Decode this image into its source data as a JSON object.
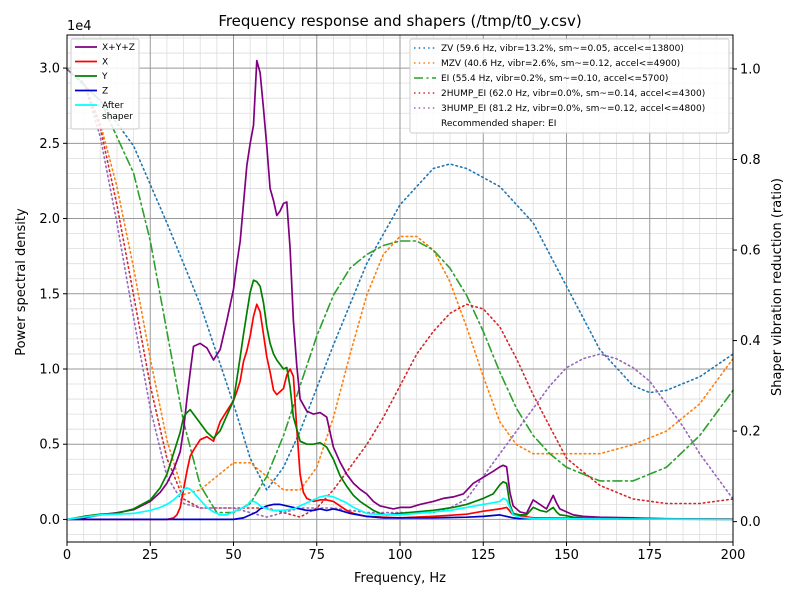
{
  "chart_data": {
    "type": "line",
    "title": "Frequency response and shapers (/tmp/t0_y.csv)",
    "xlabel": "Frequency, Hz",
    "ylabel": "Power spectral density",
    "y2label": "Shaper vibration reduction (ratio)",
    "yscale_label": "1e4",
    "xlim": [
      0,
      200
    ],
    "ylim": [
      -1500,
      32200
    ],
    "y2lim": [
      -0.045,
      1.075
    ],
    "x_ticks": [
      0,
      25,
      50,
      75,
      100,
      125,
      150,
      175,
      200
    ],
    "y_ticks": [
      0,
      5000,
      10000,
      15000,
      20000,
      25000,
      30000
    ],
    "y_tick_labels": [
      "0.0",
      "0.5",
      "1.0",
      "1.5",
      "2.0",
      "2.5",
      "3.0"
    ],
    "y2_ticks": [
      0.0,
      0.2,
      0.4,
      0.6,
      0.8,
      1.0
    ],
    "y2_tick_labels": [
      "0.0",
      "0.2",
      "0.4",
      "0.6",
      "0.8",
      "1.0"
    ],
    "grid": true,
    "legend_left_placement": "top-left",
    "legend_right_placement": "top-right",
    "recommended_text": "Recommended shaper: EI",
    "psd_series": [
      {
        "name": "X+Y+Z",
        "color": "#800080",
        "x": [
          0,
          5,
          10,
          15,
          20,
          25,
          28,
          30,
          32,
          34,
          35,
          36,
          37,
          38,
          40,
          42,
          44,
          46,
          48,
          50,
          51,
          52,
          53,
          54,
          55,
          56,
          57,
          58,
          59,
          60,
          61,
          62,
          63,
          64,
          65,
          66,
          67,
          68,
          69,
          70,
          72,
          74,
          76,
          78,
          80,
          82,
          84,
          86,
          88,
          90,
          92,
          94,
          96,
          98,
          100,
          103,
          106,
          110,
          113,
          116,
          119,
          122,
          125,
          128,
          130,
          131,
          132,
          133,
          134,
          136,
          138,
          140,
          142,
          144,
          146,
          147,
          148,
          150,
          152,
          155,
          160,
          170,
          180,
          190,
          200
        ],
        "y": [
          0,
          100,
          300,
          450,
          650,
          1200,
          1800,
          2400,
          3300,
          4500,
          6000,
          8000,
          9800,
          11500,
          11700,
          11400,
          10600,
          11300,
          13200,
          15300,
          17000,
          18500,
          21000,
          23500,
          25000,
          26200,
          30500,
          29700,
          27300,
          24800,
          22000,
          21200,
          20200,
          20500,
          21000,
          21100,
          18000,
          13200,
          10200,
          8000,
          7200,
          7000,
          7100,
          6800,
          4800,
          3800,
          3000,
          2400,
          2000,
          1700,
          1200,
          900,
          800,
          700,
          800,
          800,
          1000,
          1200,
          1400,
          1500,
          1700,
          2400,
          2800,
          3200,
          3500,
          3600,
          3500,
          1800,
          900,
          500,
          400,
          1300,
          1000,
          700,
          1600,
          1100,
          700,
          500,
          300,
          200,
          150,
          100,
          50,
          30,
          20
        ]
      },
      {
        "name": "X",
        "color": "#ff0000",
        "x": [
          0,
          10,
          20,
          30,
          32,
          33,
          34,
          35,
          36,
          37,
          38,
          40,
          42,
          44,
          46,
          48,
          50,
          51,
          52,
          53,
          54,
          55,
          56,
          57,
          58,
          59,
          60,
          61,
          62,
          63,
          64,
          65,
          66,
          67,
          68,
          69,
          70,
          71,
          72,
          74,
          76,
          78,
          80,
          82,
          84,
          86,
          88,
          90,
          95,
          100,
          110,
          120,
          125,
          130,
          132,
          134,
          140,
          150,
          160,
          180,
          200
        ],
        "y": [
          0,
          0,
          0,
          0,
          100,
          300,
          800,
          2000,
          3200,
          4200,
          4600,
          5300,
          5500,
          5200,
          6500,
          7200,
          7900,
          8500,
          9200,
          10500,
          11200,
          12200,
          13500,
          14300,
          13800,
          12300,
          10800,
          9800,
          8600,
          8300,
          8500,
          8700,
          9600,
          10000,
          9500,
          6000,
          3000,
          1800,
          1400,
          1200,
          1300,
          1300,
          1200,
          900,
          600,
          400,
          300,
          200,
          150,
          100,
          200,
          350,
          550,
          700,
          800,
          300,
          100,
          80,
          60,
          40,
          20
        ]
      },
      {
        "name": "Y",
        "color": "#008000",
        "x": [
          0,
          5,
          10,
          15,
          20,
          25,
          28,
          30,
          32,
          34,
          35,
          36,
          37,
          38,
          40,
          42,
          44,
          46,
          48,
          50,
          51,
          52,
          53,
          54,
          55,
          56,
          57,
          58,
          59,
          60,
          61,
          62,
          63,
          64,
          65,
          66,
          67,
          68,
          69,
          70,
          71,
          72,
          74,
          76,
          78,
          80,
          82,
          84,
          86,
          88,
          90,
          92,
          94,
          96,
          100,
          110,
          116,
          120,
          125,
          128,
          130,
          131,
          132,
          133,
          134,
          136,
          138,
          140,
          142,
          144,
          146,
          147,
          148,
          150,
          152,
          155,
          160,
          170,
          180,
          200
        ],
        "y": [
          0,
          200,
          350,
          400,
          700,
          1300,
          2100,
          3000,
          4400,
          5800,
          6800,
          7100,
          7300,
          7000,
          6400,
          5800,
          5400,
          5900,
          6900,
          7900,
          9300,
          10800,
          12300,
          13700,
          15100,
          15900,
          15800,
          15500,
          14400,
          12800,
          11700,
          11000,
          10600,
          10300,
          10000,
          10100,
          8800,
          6800,
          6000,
          5200,
          5100,
          5000,
          5000,
          5100,
          4800,
          4000,
          2900,
          2200,
          1600,
          1200,
          900,
          600,
          400,
          300,
          400,
          600,
          800,
          1000,
          1400,
          1700,
          2300,
          2500,
          2400,
          1000,
          400,
          300,
          300,
          800,
          600,
          500,
          800,
          500,
          300,
          250,
          150,
          100,
          50,
          30,
          20,
          10
        ]
      },
      {
        "name": "Z",
        "color": "#0000cd",
        "x": [
          0,
          20,
          40,
          50,
          53,
          55,
          57,
          58,
          60,
          62,
          64,
          66,
          68,
          70,
          72,
          74,
          76,
          78,
          80,
          82,
          85,
          90,
          95,
          100,
          110,
          120,
          125,
          130,
          132,
          134,
          136,
          140,
          145,
          150,
          160,
          180,
          200
        ],
        "y": [
          0,
          0,
          0,
          0,
          100,
          300,
          500,
          700,
          900,
          1000,
          1000,
          900,
          800,
          700,
          600,
          600,
          700,
          600,
          700,
          600,
          400,
          200,
          100,
          100,
          100,
          150,
          200,
          300,
          200,
          100,
          50,
          80,
          60,
          50,
          30,
          20,
          10
        ]
      },
      {
        "name": "After\nshaper",
        "color": "#00ffff",
        "x": [
          0,
          5,
          10,
          15,
          20,
          25,
          28,
          30,
          32,
          34,
          35,
          36,
          37,
          38,
          40,
          42,
          44,
          46,
          48,
          50,
          52,
          54,
          55,
          56,
          57,
          58,
          60,
          62,
          65,
          68,
          70,
          72,
          74,
          76,
          78,
          80,
          82,
          84,
          86,
          88,
          90,
          95,
          100,
          105,
          110,
          115,
          120,
          125,
          130,
          131,
          132,
          133,
          134,
          136,
          140,
          150,
          160,
          180,
          200
        ],
        "y": [
          0,
          150,
          300,
          350,
          400,
          600,
          800,
          1000,
          1300,
          1700,
          2000,
          2100,
          2000,
          1800,
          1300,
          800,
          500,
          300,
          300,
          500,
          700,
          900,
          1200,
          1200,
          1100,
          900,
          700,
          600,
          600,
          700,
          900,
          1100,
          1300,
          1500,
          1600,
          1500,
          1300,
          1100,
          800,
          600,
          400,
          300,
          300,
          400,
          500,
          600,
          800,
          1000,
          1200,
          1400,
          1300,
          800,
          300,
          150,
          60,
          40,
          30,
          20,
          10
        ]
      }
    ],
    "shaper_series": [
      {
        "name": "ZV (59.6 Hz, vibr=13.2%, sm~=0.05, accel<=13800)",
        "color": "#1f77b4",
        "dash": "dotted",
        "x": [
          0,
          10,
          20,
          30,
          40,
          50,
          55,
          60,
          65,
          70,
          80,
          90,
          100,
          110,
          115,
          120,
          130,
          140,
          150,
          160,
          170,
          175,
          180,
          190,
          200
        ],
        "y": [
          1.0,
          0.93,
          0.83,
          0.66,
          0.48,
          0.26,
          0.14,
          0.07,
          0.12,
          0.2,
          0.39,
          0.57,
          0.7,
          0.78,
          0.79,
          0.78,
          0.74,
          0.66,
          0.52,
          0.38,
          0.3,
          0.285,
          0.29,
          0.32,
          0.37
        ]
      },
      {
        "name": "MZV (40.6 Hz, vibr=2.6%, sm~=0.12, accel<=4900)",
        "color": "#ff7f0e",
        "dash": "dotted",
        "x": [
          0,
          5,
          10,
          15,
          20,
          25,
          30,
          35,
          40,
          45,
          50,
          55,
          60,
          65,
          70,
          75,
          80,
          85,
          90,
          95,
          100,
          105,
          110,
          115,
          120,
          125,
          130,
          135,
          140,
          145,
          150,
          160,
          170,
          180,
          190,
          200
        ],
        "y": [
          1.0,
          0.97,
          0.88,
          0.74,
          0.56,
          0.36,
          0.18,
          0.06,
          0.07,
          0.1,
          0.13,
          0.13,
          0.1,
          0.07,
          0.07,
          0.12,
          0.23,
          0.37,
          0.5,
          0.59,
          0.63,
          0.63,
          0.6,
          0.53,
          0.43,
          0.32,
          0.22,
          0.17,
          0.15,
          0.15,
          0.15,
          0.15,
          0.17,
          0.2,
          0.26,
          0.36
        ]
      },
      {
        "name": "EI (55.4 Hz, vibr=0.2%, sm~=0.10, accel<=5700)",
        "color": "#2ca02c",
        "dash": "dashdot",
        "x": [
          0,
          10,
          20,
          25,
          30,
          35,
          40,
          45,
          50,
          55,
          60,
          65,
          70,
          75,
          80,
          85,
          90,
          95,
          100,
          105,
          110,
          115,
          120,
          125,
          130,
          135,
          140,
          145,
          150,
          160,
          165,
          170,
          180,
          190,
          200
        ],
        "y": [
          1.0,
          0.93,
          0.77,
          0.62,
          0.42,
          0.22,
          0.08,
          0.02,
          0.02,
          0.04,
          0.1,
          0.19,
          0.3,
          0.41,
          0.5,
          0.56,
          0.59,
          0.61,
          0.62,
          0.62,
          0.6,
          0.56,
          0.5,
          0.42,
          0.33,
          0.25,
          0.19,
          0.15,
          0.12,
          0.09,
          0.09,
          0.09,
          0.12,
          0.19,
          0.29
        ]
      },
      {
        "name": "2HUMP_EI (62.0 Hz, vibr=0.0%, sm~=0.14, accel<=4300)",
        "color": "#d62728",
        "dash": "dotted",
        "x": [
          0,
          5,
          10,
          15,
          20,
          25,
          30,
          35,
          40,
          50,
          60,
          70,
          75,
          80,
          85,
          90,
          95,
          100,
          105,
          110,
          115,
          120,
          125,
          130,
          135,
          140,
          145,
          150,
          160,
          170,
          180,
          190,
          200
        ],
        "y": [
          1.0,
          0.97,
          0.87,
          0.7,
          0.5,
          0.3,
          0.14,
          0.05,
          0.03,
          0.03,
          0.03,
          0.01,
          0.03,
          0.07,
          0.12,
          0.17,
          0.23,
          0.3,
          0.37,
          0.42,
          0.46,
          0.48,
          0.47,
          0.43,
          0.36,
          0.28,
          0.21,
          0.14,
          0.08,
          0.05,
          0.04,
          0.04,
          0.05
        ]
      },
      {
        "name": "3HUMP_EI (81.2 Hz, vibr=0.0%, sm~=0.12, accel<=4800)",
        "color": "#9467bd",
        "dash": "dotted",
        "x": [
          0,
          5,
          10,
          15,
          20,
          25,
          30,
          35,
          40,
          50,
          60,
          70,
          80,
          90,
          100,
          110,
          115,
          120,
          125,
          130,
          135,
          140,
          145,
          150,
          155,
          160,
          165,
          170,
          175,
          180,
          185,
          190,
          195,
          200
        ],
        "y": [
          1.0,
          0.97,
          0.85,
          0.66,
          0.45,
          0.25,
          0.1,
          0.04,
          0.03,
          0.03,
          0.01,
          0.03,
          0.03,
          0.02,
          0.02,
          0.02,
          0.03,
          0.05,
          0.1,
          0.15,
          0.2,
          0.25,
          0.3,
          0.34,
          0.36,
          0.37,
          0.36,
          0.34,
          0.31,
          0.26,
          0.21,
          0.15,
          0.1,
          0.05
        ]
      }
    ]
  }
}
